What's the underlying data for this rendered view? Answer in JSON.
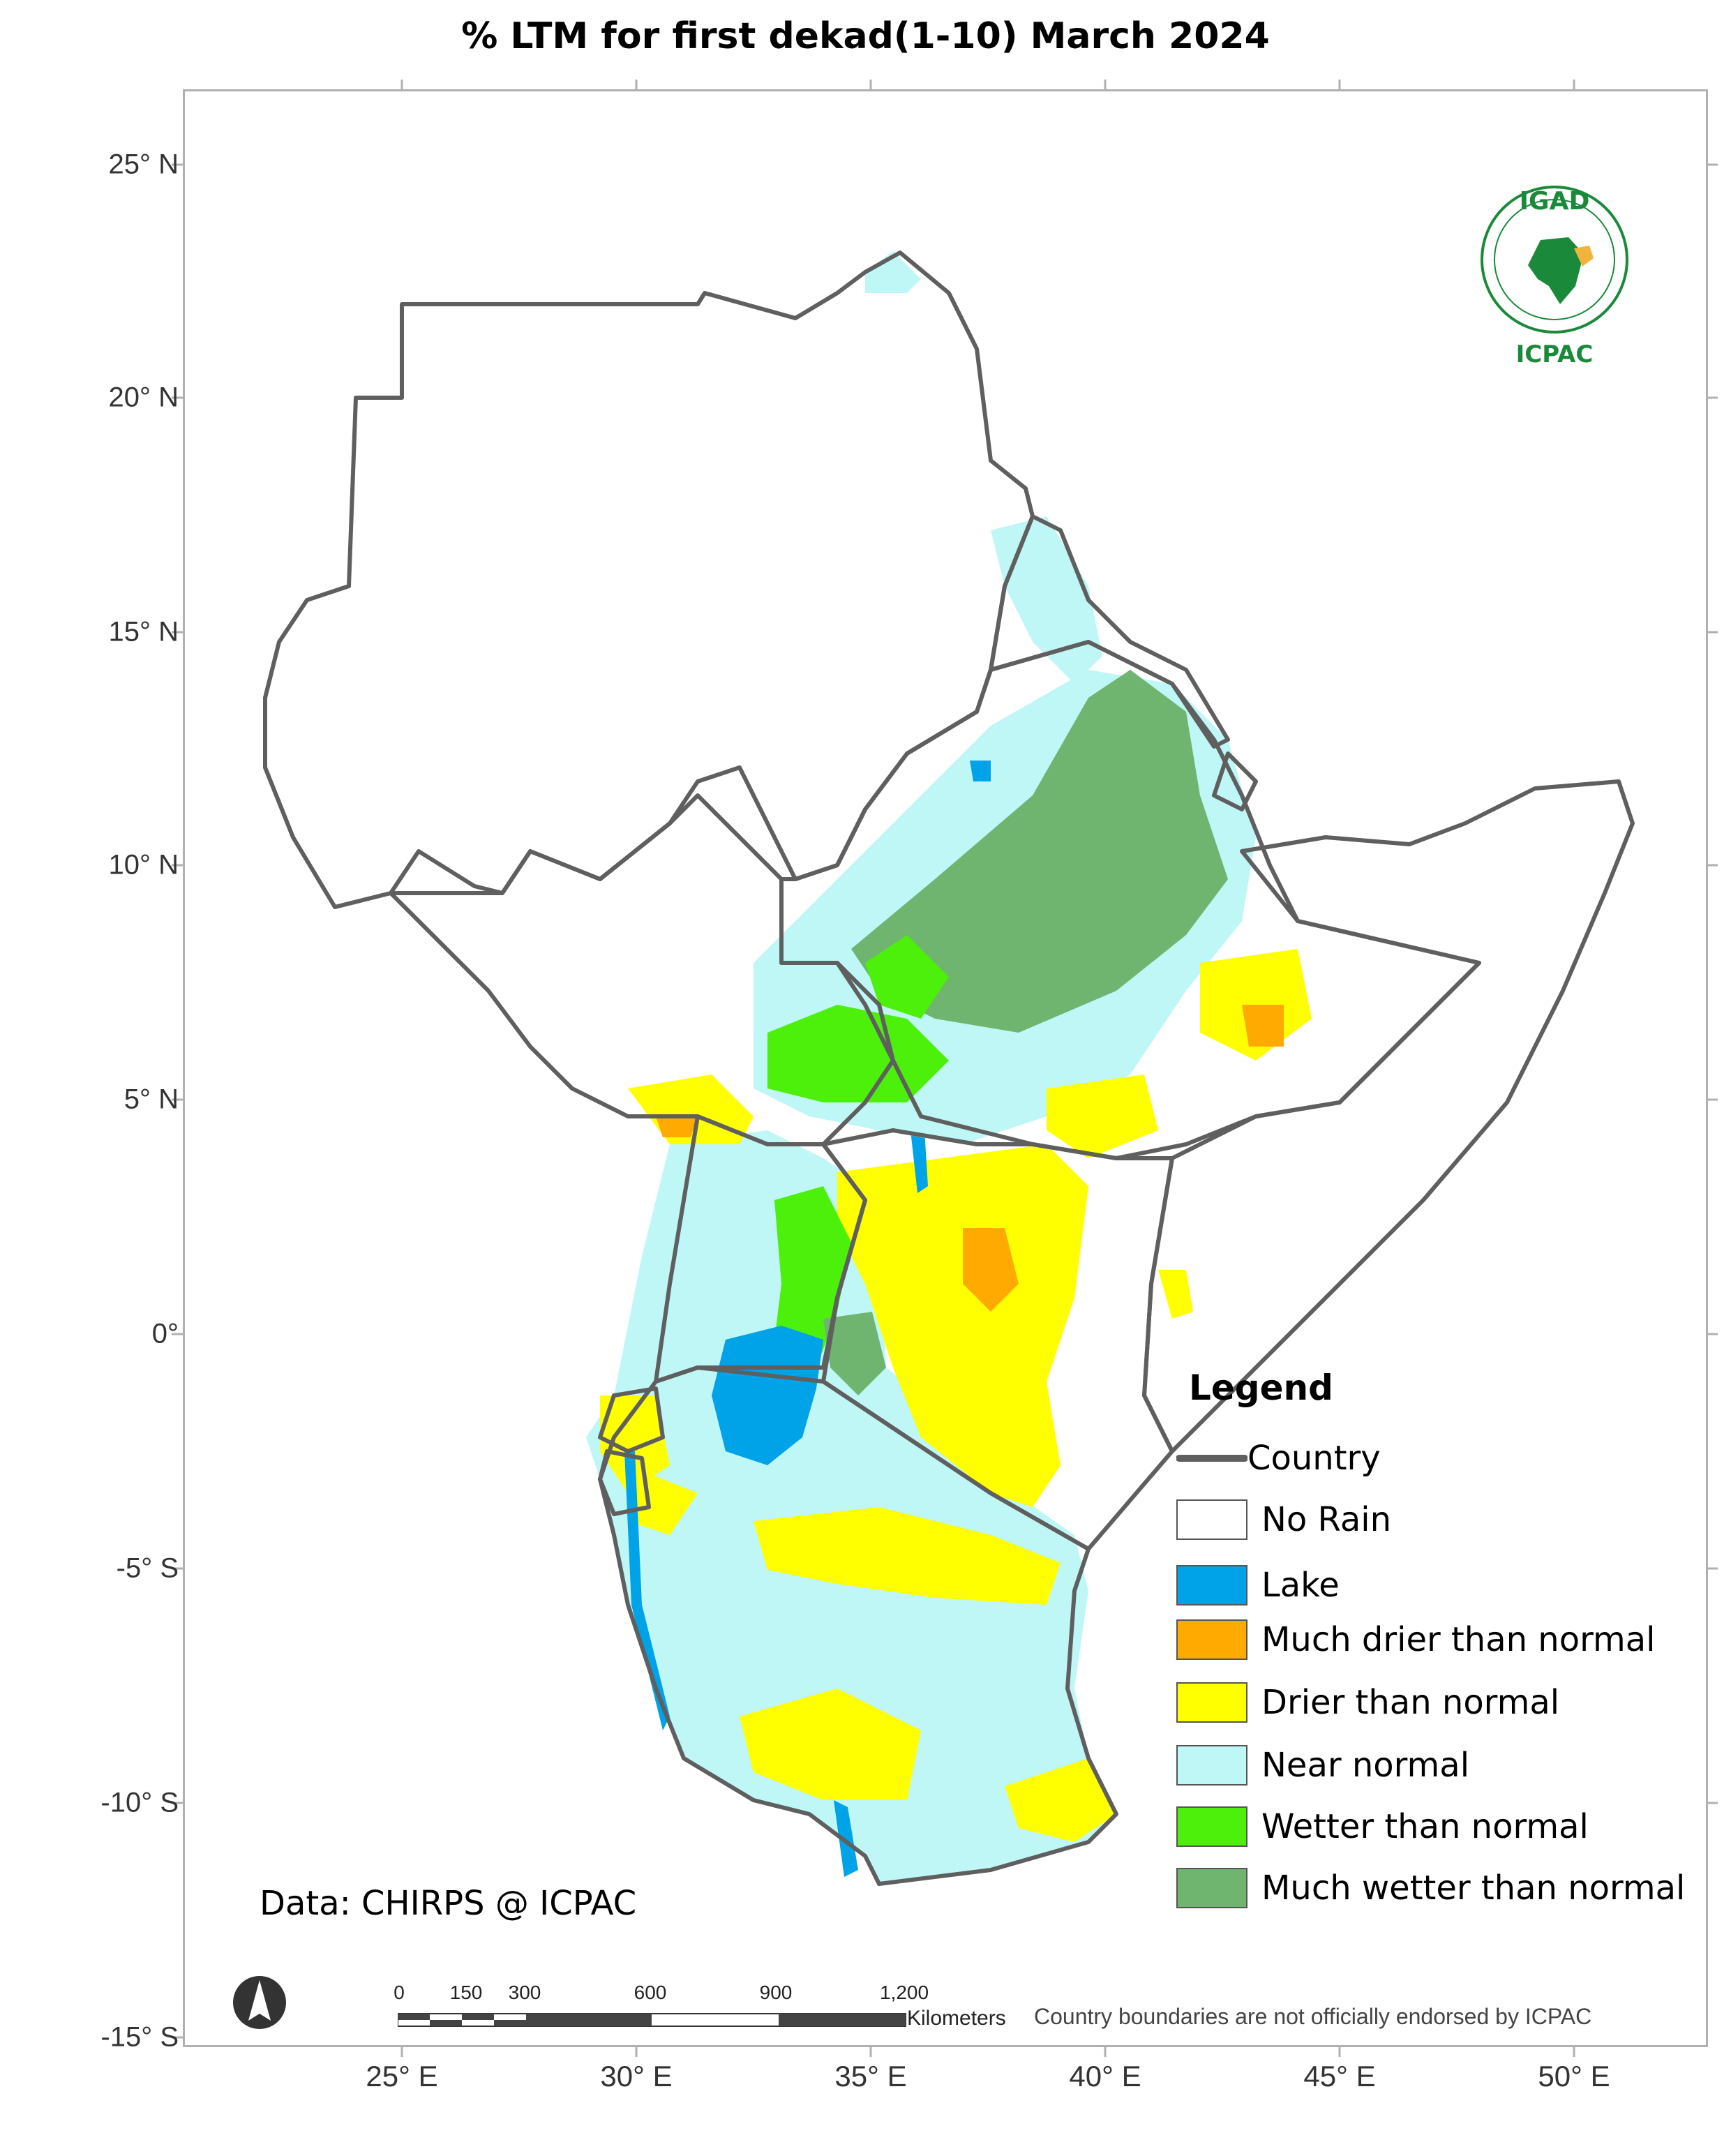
{
  "title": "% LTM   for  first dekad(1-10) March 2024",
  "latitude_labels": [
    "25° N",
    "20° N",
    "15° N",
    "10° N",
    "5° N",
    "0°",
    "-5° S",
    "-10° S",
    "-15° S"
  ],
  "longitude_labels": [
    "25° E",
    "30° E",
    "35° E",
    "40° E",
    "45° E",
    "50° E"
  ],
  "legend": {
    "title": "Legend",
    "country_label": "Country",
    "items": [
      {
        "label": "No Rain",
        "color": "#ffffff"
      },
      {
        "label": "Lake",
        "color": "#00a2e8"
      },
      {
        "label": "Much drier than normal",
        "color": "#ffaa00"
      },
      {
        "label": "Drier than normal",
        "color": "#ffff00"
      },
      {
        "label": "Near normal",
        "color": "#bff7f7"
      },
      {
        "label": "Wetter than normal",
        "color": "#4cf00a"
      },
      {
        "label": "Much wetter than normal",
        "color": "#6fb46f"
      }
    ]
  },
  "credit": "Data: CHIRPS @ ICPAC",
  "disclaimer": "Country boundaries are not officially endorsed by ICPAC",
  "logo": {
    "top": "IGAD",
    "bottom": "ICPAC"
  },
  "scale_bar": {
    "ticks": [
      "0",
      "150",
      "300",
      "600",
      "900",
      "1,200"
    ],
    "unit": "Kilometers"
  },
  "colors": {
    "boundary": "#5f5f5f",
    "frame": "#b0b0b0"
  }
}
